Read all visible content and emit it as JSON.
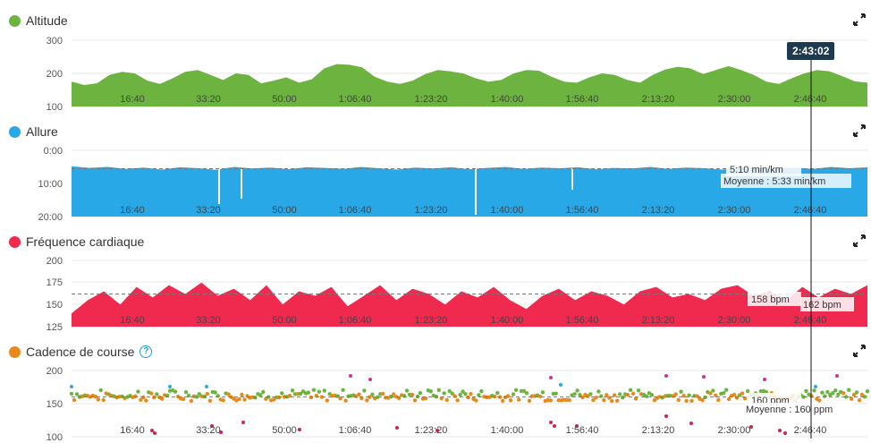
{
  "cursor": {
    "time_label": "2:43:02"
  },
  "x_ticks": [
    "16:40",
    "33:20",
    "50:00",
    "1:06:40",
    "1:23:20",
    "1:40:00",
    "1:56:40",
    "2:13:20",
    "2:30:00",
    "2:46:40"
  ],
  "panels": {
    "altitude": {
      "title": "Altitude",
      "color": "#6db33f",
      "icon": "expand-icon",
      "y_ticks": [
        "300",
        "200",
        "100"
      ]
    },
    "pace": {
      "title": "Allure",
      "color": "#29a8e8",
      "icon": "expand-icon",
      "y_ticks": [
        "0:00",
        "10:00",
        "20:00"
      ],
      "tooltip_value": "5:10 min/km",
      "tooltip_average": "Moyenne : 5:33 min/km"
    },
    "heart_rate": {
      "title": "Fréquence cardiaque",
      "color": "#f0294f",
      "icon": "expand-icon",
      "y_ticks": [
        "200",
        "175",
        "150",
        "125"
      ],
      "tooltip_value": "158 bpm",
      "tooltip_average": "162 bpm"
    },
    "cadence": {
      "title": "Cadence de course",
      "color": "#e8891a",
      "icon": "expand-icon",
      "help_icon": "help-icon",
      "y_ticks": [
        "200",
        "150",
        "100"
      ],
      "tooltip_value": "160 ppm",
      "tooltip_average": "Moyenne : 160 ppm"
    }
  },
  "chart_data": [
    {
      "type": "area",
      "title": "Altitude",
      "x_range_seconds": [
        0,
        10800
      ],
      "ylim": [
        100,
        300
      ],
      "series": [
        {
          "name": "Altitude",
          "values": [
            175,
            165,
            170,
            195,
            205,
            200,
            178,
            168,
            185,
            205,
            210,
            195,
            180,
            200,
            195,
            170,
            178,
            188,
            172,
            182,
            215,
            228,
            226,
            218,
            190,
            175,
            168,
            178,
            198,
            210,
            206,
            200,
            185,
            175,
            180,
            200,
            210,
            208,
            190,
            175,
            172,
            188,
            200,
            195,
            180,
            172,
            195,
            212,
            220,
            215,
            198,
            210,
            222,
            210,
            195,
            175,
            168,
            185,
            200,
            210,
            206,
            192,
            176,
            172
          ]
        }
      ]
    },
    {
      "type": "area",
      "title": "Allure",
      "ylim": [
        0,
        20
      ],
      "series": [
        {
          "name": "Allure",
          "values": [
            4.8,
            5.3,
            5.0,
            5.6,
            5.2,
            5.8,
            5.1,
            5.4,
            5.9,
            5.0,
            5.5,
            5.2,
            5.7,
            5.1,
            5.3,
            5.6,
            5.0,
            5.4,
            5.8,
            5.2,
            5.5,
            5.1,
            5.7,
            5.3,
            5.0,
            5.6,
            5.2,
            5.4,
            5.1,
            5.7,
            5.3,
            5.5,
            5.0,
            5.6,
            5.2,
            5.4,
            5.8,
            5.1,
            5.3,
            5.5,
            5.2,
            5.6,
            5.0,
            5.4,
            5.1
          ]
        }
      ],
      "average": 5.55
    },
    {
      "type": "area",
      "title": "Fréquence cardiaque",
      "ylim": [
        125,
        200
      ],
      "series": [
        {
          "name": "Fréquence cardiaque",
          "values": [
            140,
            155,
            165,
            150,
            170,
            158,
            172,
            162,
            175,
            160,
            168,
            155,
            172,
            150,
            165,
            160,
            170,
            148,
            160,
            172,
            155,
            168,
            162,
            150,
            165,
            158,
            170,
            155,
            145,
            160,
            168,
            155,
            165,
            160,
            150,
            165,
            170,
            158,
            162,
            155,
            168,
            172,
            160,
            165,
            155,
            170,
            158,
            168,
            162,
            172
          ]
        }
      ],
      "average": 162
    },
    {
      "type": "scatter",
      "title": "Cadence de course",
      "ylim": [
        100,
        200
      ],
      "average": 160
    }
  ]
}
